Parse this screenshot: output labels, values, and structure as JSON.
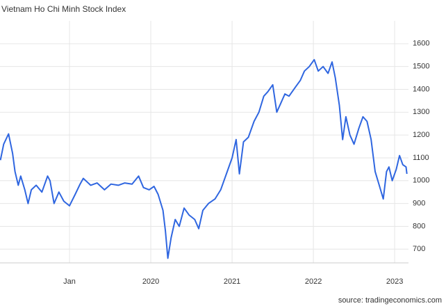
{
  "chart_data": {
    "type": "line",
    "title": "Vietnam Ho Chi Minh Stock Index",
    "source": "source: tradingeconomics.com",
    "x": [
      2018.15,
      2018.19,
      2018.25,
      2018.3,
      2018.33,
      2018.37,
      2018.4,
      2018.45,
      2018.49,
      2018.53,
      2018.59,
      2018.66,
      2018.73,
      2018.76,
      2018.81,
      2018.87,
      2018.93,
      2019.0,
      2019.07,
      2019.13,
      2019.17,
      2019.26,
      2019.34,
      2019.43,
      2019.51,
      2019.6,
      2019.68,
      2019.77,
      2019.85,
      2019.91,
      2019.98,
      2020.04,
      2020.09,
      2020.15,
      2020.18,
      2020.21,
      2020.25,
      2020.3,
      2020.35,
      2020.41,
      2020.47,
      2020.54,
      2020.59,
      2020.64,
      2020.71,
      2020.79,
      2020.86,
      2020.93,
      2021.0,
      2021.05,
      2021.09,
      2021.14,
      2021.2,
      2021.27,
      2021.33,
      2021.39,
      2021.44,
      2021.5,
      2021.55,
      2021.6,
      2021.65,
      2021.7,
      2021.78,
      2021.84,
      2021.89,
      2021.95,
      2022.01,
      2022.06,
      2022.12,
      2022.18,
      2022.23,
      2022.27,
      2022.32,
      2022.36,
      2022.4,
      2022.45,
      2022.5,
      2022.56,
      2022.61,
      2022.66,
      2022.71,
      2022.76,
      2022.81,
      2022.86,
      2022.9,
      2022.93,
      2022.97,
      2023.02,
      2023.06,
      2023.1,
      2023.14,
      2023.15
    ],
    "series": [
      {
        "name": "Vietnam Ho Chi Minh Stock Index",
        "color": "#2f66e0",
        "values": [
          1090,
          1160,
          1205,
          1120,
          1040,
          980,
          1020,
          960,
          900,
          960,
          980,
          950,
          1020,
          1000,
          900,
          950,
          910,
          890,
          940,
          985,
          1010,
          980,
          990,
          960,
          985,
          980,
          990,
          985,
          1020,
          970,
          960,
          975,
          940,
          870,
          780,
          660,
          750,
          830,
          800,
          880,
          850,
          830,
          790,
          870,
          900,
          920,
          960,
          1030,
          1100,
          1180,
          1030,
          1170,
          1190,
          1260,
          1300,
          1370,
          1390,
          1420,
          1300,
          1340,
          1380,
          1370,
          1410,
          1440,
          1480,
          1500,
          1530,
          1480,
          1500,
          1470,
          1520,
          1450,
          1330,
          1180,
          1280,
          1200,
          1160,
          1230,
          1280,
          1260,
          1180,
          1040,
          980,
          920,
          1040,
          1060,
          1000,
          1050,
          1110,
          1070,
          1060,
          1030
        ]
      }
    ],
    "xlim": [
      2018.145,
      2023.17
    ],
    "xticks": [
      {
        "value": 2019,
        "label": "Jan"
      },
      2020,
      2021,
      2022,
      2023
    ],
    "ylim": [
      640,
      1700
    ],
    "yticks": [
      700,
      800,
      900,
      1000,
      1100,
      1200,
      1300,
      1400,
      1500,
      1600
    ],
    "grid": true
  }
}
